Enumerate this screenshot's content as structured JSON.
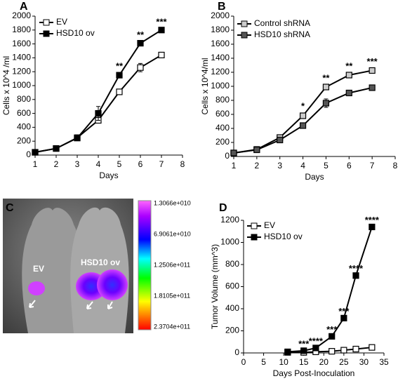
{
  "chart_data": [
    {
      "type": "line",
      "label": "A",
      "x_label": "Days",
      "y_label": "Cells x 10^4 /ml",
      "x": [
        1,
        2,
        3,
        4,
        5,
        6,
        7
      ],
      "xlim": [
        1,
        8
      ],
      "xticks": [
        1,
        2,
        3,
        4,
        5,
        6,
        7,
        8
      ],
      "ylim": [
        0,
        2000
      ],
      "yticks": [
        0,
        200,
        400,
        600,
        800,
        1000,
        1200,
        1400,
        1600,
        1800,
        2000
      ],
      "legend": "upper left",
      "series": [
        {
          "name": "EV",
          "color": "#000000",
          "marker_fill": "#ffffff",
          "values": [
            40,
            95,
            250,
            500,
            910,
            1260,
            1440
          ],
          "errors": [
            5,
            5,
            40,
            30,
            30,
            60,
            40
          ]
        },
        {
          "name": "HSD10 ov",
          "color": "#000000",
          "marker_fill": "#000000",
          "values": [
            40,
            95,
            245,
            600,
            1150,
            1610,
            1800
          ],
          "errors": [
            5,
            5,
            20,
            100,
            30,
            20,
            20
          ]
        }
      ],
      "annotations": [
        {
          "x": 5,
          "text": "**"
        },
        {
          "x": 6,
          "text": "**"
        },
        {
          "x": 7,
          "text": "***"
        }
      ]
    },
    {
      "type": "line",
      "label": "B",
      "x_label": "Days",
      "y_label": "Cells x 10^4/ml",
      "x": [
        1,
        2,
        3,
        4,
        5,
        6,
        7
      ],
      "xlim": [
        1,
        8
      ],
      "xticks": [
        1,
        2,
        3,
        4,
        5,
        6,
        7,
        8
      ],
      "ylim": [
        0,
        2000
      ],
      "yticks": [
        0,
        200,
        400,
        600,
        800,
        1000,
        1200,
        1400,
        1600,
        1800,
        2000
      ],
      "legend": "upper left",
      "series": [
        {
          "name": "Control shRNA",
          "color": "#000000",
          "marker_fill": "#cccccc",
          "values": [
            50,
            100,
            270,
            580,
            990,
            1160,
            1225
          ],
          "errors": [
            5,
            5,
            20,
            40,
            30,
            30,
            30
          ]
        },
        {
          "name": "HSD10 shRNA",
          "color": "#000000",
          "marker_fill": "#555555",
          "values": [
            50,
            95,
            235,
            440,
            760,
            905,
            980
          ],
          "errors": [
            5,
            5,
            20,
            30,
            60,
            40,
            30
          ]
        }
      ],
      "annotations": [
        {
          "x": 4,
          "text": "*"
        },
        {
          "x": 5,
          "text": "**"
        },
        {
          "x": 6,
          "text": "**"
        },
        {
          "x": 7,
          "text": "***"
        }
      ]
    },
    {
      "type": "line",
      "label": "D",
      "x_label": "Days Post-Inoculation",
      "y_label": "Tumor Volume (mm^3)",
      "x": [
        11,
        15,
        18,
        22,
        25,
        28,
        32
      ],
      "xlim": [
        0,
        35
      ],
      "xticks": [
        0,
        5,
        10,
        15,
        20,
        25,
        30,
        35
      ],
      "ylim": [
        0,
        1200
      ],
      "yticks": [
        0,
        200,
        400,
        600,
        800,
        1000,
        1200
      ],
      "legend": "upper left",
      "series": [
        {
          "name": "EV",
          "color": "#000000",
          "marker_fill": "#ffffff",
          "values": [
            5,
            5,
            10,
            15,
            25,
            35,
            50
          ]
        },
        {
          "name": "HSD10 ov",
          "color": "#000000",
          "marker_fill": "#000000",
          "values": [
            10,
            20,
            45,
            150,
            315,
            700,
            1140
          ]
        }
      ],
      "annotations": [
        {
          "x": 15,
          "text": "***"
        },
        {
          "x": 18,
          "text": "****"
        },
        {
          "x": 22,
          "text": "***"
        },
        {
          "x": 25,
          "text": "***"
        },
        {
          "x": 28,
          "text": "****"
        },
        {
          "x": 32,
          "text": "****"
        }
      ]
    }
  ],
  "image_panel": {
    "label": "C",
    "left_mouse": "EV",
    "right_mouse": "HSD10 ov",
    "colorbar_labels": [
      "1.3066e+010",
      "6.9061e+010",
      "1.2506e+011",
      "1.8105e+011",
      "2.3704e+011"
    ]
  }
}
